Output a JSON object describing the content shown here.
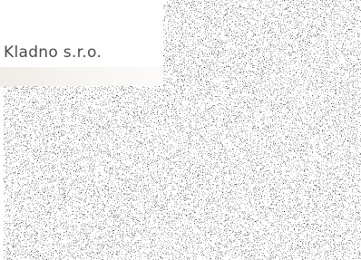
{
  "label": "Kladno s.r.o."
}
